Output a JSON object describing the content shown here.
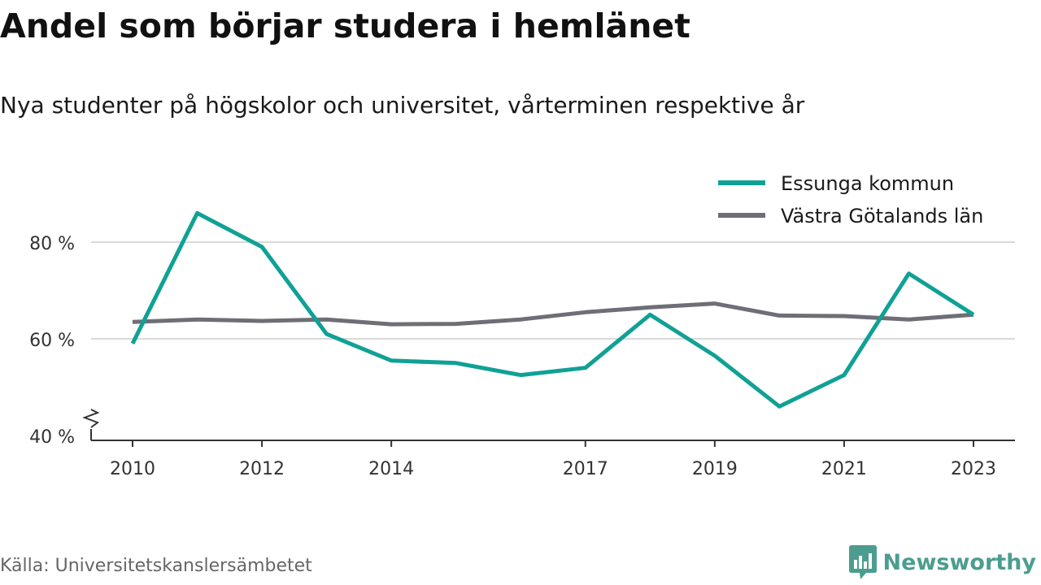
{
  "header": {
    "title": "Andel som börjar studera i hemlänet",
    "subtitle": "Nya studenter på högskolor och universitet, vårterminen respektive år"
  },
  "footer": {
    "source": "Källa: Universitetskanslersämbetet",
    "brand": "Newsworthy"
  },
  "colors": {
    "series_1": "#10a195",
    "series_2": "#6e6e77",
    "gridline": "#d9d9d9",
    "axis": "#333333",
    "brand": "#4c9d8f"
  },
  "chart_data": {
    "type": "line",
    "title": "Andel som börjar studera i hemlänet",
    "subtitle": "Nya studenter på högskolor och universitet, vårterminen respektive år",
    "xlabel": "",
    "ylabel": "",
    "x": [
      2010,
      2011,
      2012,
      2013,
      2014,
      2015,
      2016,
      2017,
      2018,
      2019,
      2020,
      2021,
      2022,
      2023
    ],
    "x_ticks": [
      2010,
      2012,
      2014,
      2017,
      2019,
      2021,
      2023
    ],
    "y_ticks": [
      {
        "value": 40,
        "label": "40 %"
      },
      {
        "value": 60,
        "label": "60 %"
      },
      {
        "value": 80,
        "label": "80 %"
      }
    ],
    "ylim": [
      40,
      87
    ],
    "y_axis_break": true,
    "grid": true,
    "legend_position": "top-right",
    "series": [
      {
        "name": "Essunga kommun",
        "color": "#10a195",
        "values": [
          59.0,
          86.0,
          79.0,
          61.0,
          55.5,
          55.0,
          52.5,
          54.0,
          65.0,
          56.5,
          46.0,
          52.5,
          73.5,
          65.0
        ]
      },
      {
        "name": "Västra Götalands län",
        "color": "#6e6e77",
        "values": [
          63.5,
          64.0,
          63.7,
          64.0,
          63.0,
          63.1,
          64.0,
          65.5,
          66.5,
          67.3,
          64.8,
          64.7,
          64.0,
          65.0
        ]
      }
    ]
  }
}
